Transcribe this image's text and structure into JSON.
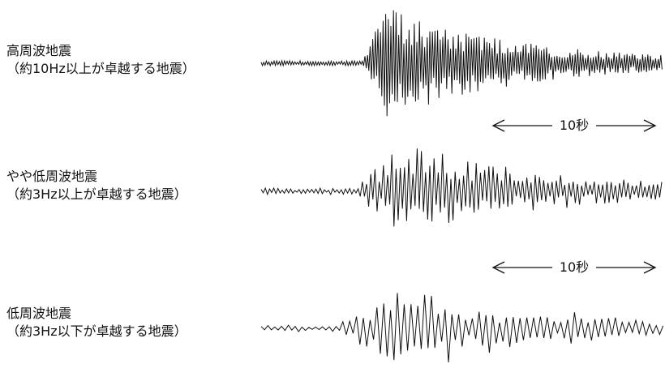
{
  "rows": [
    {
      "name": "高周波地震",
      "note": "（約10Hz以上が卓越する地震）"
    },
    {
      "name": "やや低周波地震",
      "note": "（約3Hz以上が卓越する地震）"
    },
    {
      "name": "低周波地震",
      "note": "（約3Hz以下が卓越する地震）"
    }
  ],
  "scale_bars": [
    {
      "label": "10秒"
    },
    {
      "label": "10秒"
    }
  ],
  "colors": {
    "trace": "#111111",
    "background": "#ffffff"
  }
}
